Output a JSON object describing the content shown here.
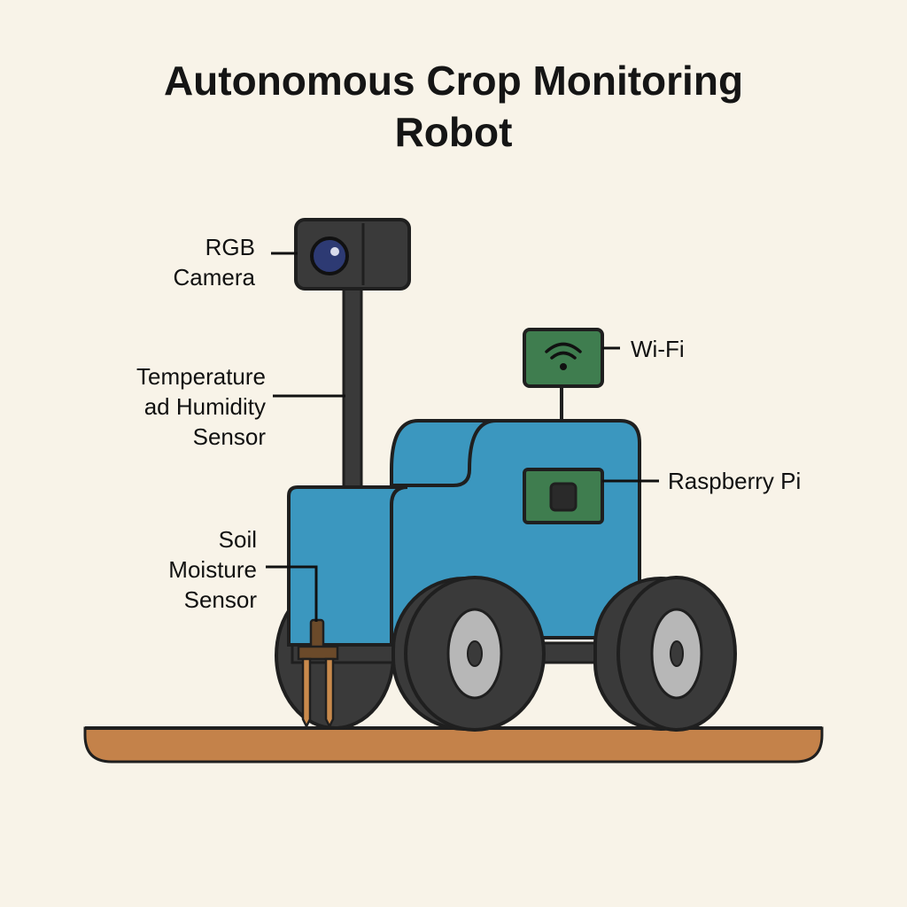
{
  "title_lines": [
    "Autonomous Crop Monitoring",
    "Robot"
  ],
  "labels": {
    "rgb_camera": [
      "RGB",
      "Camera"
    ],
    "temp_humidity": [
      "Temperature",
      "ad Humidity",
      "Sensor"
    ],
    "soil_moisture": [
      "Soil",
      "Moisture",
      "Sensor"
    ],
    "wifi": [
      "Wi-Fi"
    ],
    "raspberry_pi": [
      "Raspberry Pi"
    ]
  },
  "colors": {
    "background": "#f8f3e8",
    "body_blue": "#3b97bf",
    "outline": "#1f1f1f",
    "module_green": "#3f7d4f",
    "tire": "#3a3a3a",
    "hub": "#b7b7b7",
    "ground": "#c4824a",
    "probe": "#c98a4c"
  }
}
